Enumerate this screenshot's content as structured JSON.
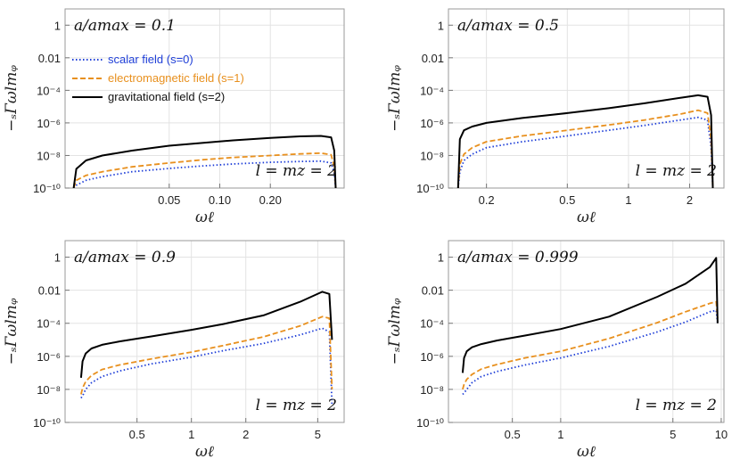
{
  "figure": {
    "ylabel": "−ₛΓωlmᵩ",
    "xlabel": "ωℓ",
    "legend": [
      {
        "label": "scalar field (s=0)",
        "color": "#1f3fd8",
        "dash": "dotted"
      },
      {
        "label": "electromagnetic field (s=1)",
        "color": "#e8901e",
        "dash": "dashed"
      },
      {
        "label": "gravitational field (s=2)",
        "color": "#000000",
        "dash": "solid"
      }
    ]
  },
  "chart_data": [
    {
      "type": "line",
      "title": "a/amax = 0.1",
      "annotation": "l = mz = 2",
      "xscale": "log",
      "yscale": "log",
      "xlim": [
        0.012,
        0.55
      ],
      "ylim": [
        1e-10,
        10
      ],
      "xticks": [
        {
          "v": 0.05,
          "label": "0.05"
        },
        {
          "v": 0.1,
          "label": "0.10"
        },
        {
          "v": 0.2,
          "label": "0.20"
        }
      ],
      "yticks": [
        {
          "v": 1,
          "label": "1"
        },
        {
          "v": 0.01,
          "label": "0.01"
        },
        {
          "v": 0.0001,
          "label": "10⁻⁴"
        },
        {
          "v": 1e-06,
          "label": "10⁻⁶"
        },
        {
          "v": 1e-08,
          "label": "10⁻⁸"
        },
        {
          "v": 1e-10,
          "label": "10⁻¹⁰"
        }
      ],
      "grid": true,
      "legend": true,
      "series": [
        {
          "name": "scalar field (s=0)",
          "x": [
            0.0135,
            0.014,
            0.016,
            0.02,
            0.03,
            0.05,
            0.08,
            0.12,
            0.2,
            0.3,
            0.4,
            0.46,
            0.48,
            0.49
          ],
          "y": [
            1e-10,
            1.5e-10,
            3e-10,
            5e-10,
            1e-09,
            1.6e-09,
            2.3e-09,
            3e-09,
            3.8e-09,
            4.3e-09,
            4.5e-09,
            3.5e-09,
            8e-10,
            1e-10
          ]
        },
        {
          "name": "electromagnetic field (s=1)",
          "x": [
            0.0135,
            0.014,
            0.016,
            0.02,
            0.03,
            0.05,
            0.08,
            0.12,
            0.2,
            0.3,
            0.4,
            0.46,
            0.48,
            0.49
          ],
          "y": [
            1e-10,
            3e-10,
            6e-10,
            1e-09,
            2e-09,
            3.5e-09,
            5.5e-09,
            7.5e-09,
            1e-08,
            1.25e-08,
            1.4e-08,
            1.1e-08,
            2e-09,
            1e-10
          ]
        },
        {
          "name": "gravitational field (s=2)",
          "x": [
            0.0135,
            0.014,
            0.016,
            0.02,
            0.03,
            0.05,
            0.08,
            0.12,
            0.2,
            0.3,
            0.4,
            0.46,
            0.48,
            0.49
          ],
          "y": [
            1e-10,
            1.5e-09,
            5e-09,
            1e-08,
            2e-08,
            4e-08,
            6e-08,
            8.5e-08,
            1.2e-07,
            1.5e-07,
            1.6e-07,
            1.3e-07,
            2e-08,
            1e-10
          ]
        }
      ]
    },
    {
      "type": "line",
      "title": "a/amax = 0.5",
      "annotation": "l = mz = 2",
      "xscale": "log",
      "yscale": "log",
      "xlim": [
        0.13,
        2.95
      ],
      "ylim": [
        1e-10,
        10
      ],
      "xticks": [
        {
          "v": 0.2,
          "label": "0.2"
        },
        {
          "v": 0.5,
          "label": "0.5"
        },
        {
          "v": 1,
          "label": "1"
        },
        {
          "v": 2,
          "label": "2"
        }
      ],
      "yticks": [
        {
          "v": 1,
          "label": "1"
        },
        {
          "v": 0.01,
          "label": "0.01"
        },
        {
          "v": 0.0001,
          "label": "10⁻⁴"
        },
        {
          "v": 1e-06,
          "label": "10⁻⁶"
        },
        {
          "v": 1e-08,
          "label": "10⁻⁸"
        },
        {
          "v": 1e-10,
          "label": "10⁻¹⁰"
        }
      ],
      "grid": true,
      "legend": false,
      "series": [
        {
          "name": "scalar field (s=0)",
          "x": [
            0.145,
            0.148,
            0.155,
            0.17,
            0.2,
            0.3,
            0.5,
            0.8,
            1.2,
            1.8,
            2.2,
            2.45,
            2.55,
            2.6
          ],
          "y": [
            1e-10,
            1e-09,
            5e-09,
            1.2e-08,
            3e-08,
            7e-08,
            1.6e-07,
            3.5e-07,
            7e-07,
            1.5e-06,
            2.2e-06,
            1.5e-06,
            3e-08,
            1e-10
          ]
        },
        {
          "name": "electromagnetic field (s=1)",
          "x": [
            0.145,
            0.148,
            0.155,
            0.17,
            0.2,
            0.3,
            0.5,
            0.8,
            1.2,
            1.8,
            2.2,
            2.45,
            2.55,
            2.6
          ],
          "y": [
            1e-10,
            3e-09,
            1.2e-08,
            3e-08,
            7e-08,
            1.6e-07,
            3.5e-07,
            7.5e-07,
            1.5e-06,
            3.5e-06,
            6e-06,
            4e-06,
            1e-07,
            1e-10
          ]
        },
        {
          "name": "gravitational field (s=2)",
          "x": [
            0.145,
            0.148,
            0.155,
            0.17,
            0.2,
            0.3,
            0.5,
            0.8,
            1.2,
            1.8,
            2.2,
            2.45,
            2.55,
            2.6
          ],
          "y": [
            1e-10,
            1e-07,
            3.5e-07,
            6e-07,
            1e-06,
            2e-06,
            4e-06,
            8e-06,
            1.6e-05,
            3.5e-05,
            5e-05,
            4e-05,
            3e-06,
            1e-10
          ]
        }
      ]
    },
    {
      "type": "line",
      "title": "a/amax = 0.9",
      "annotation": "l = mz = 2",
      "xscale": "log",
      "yscale": "log",
      "xlim": [
        0.2,
        7.0
      ],
      "ylim": [
        1e-10,
        10
      ],
      "xticks": [
        {
          "v": 0.5,
          "label": "0.5"
        },
        {
          "v": 1,
          "label": "1"
        },
        {
          "v": 2,
          "label": "2"
        },
        {
          "v": 5,
          "label": "5"
        }
      ],
      "yticks": [
        {
          "v": 1,
          "label": "1"
        },
        {
          "v": 0.01,
          "label": "0.01"
        },
        {
          "v": 0.0001,
          "label": "10⁻⁴"
        },
        {
          "v": 1e-06,
          "label": "10⁻⁶"
        },
        {
          "v": 1e-08,
          "label": "10⁻⁸"
        },
        {
          "v": 1e-10,
          "label": "10⁻¹⁰"
        }
      ],
      "grid": true,
      "legend": false,
      "series": [
        {
          "name": "scalar field (s=0)",
          "x": [
            0.245,
            0.25,
            0.26,
            0.28,
            0.32,
            0.4,
            0.6,
            1,
            1.5,
            2.5,
            4,
            5.3,
            5.8,
            6.0
          ],
          "y": [
            3e-09,
            4e-09,
            1e-08,
            2.5e-08,
            6e-08,
            1.3e-07,
            3.5e-07,
            9e-07,
            2.2e-06,
            6e-06,
            2e-05,
            5e-05,
            3e-05,
            1e-09
          ]
        },
        {
          "name": "electromagnetic field (s=1)",
          "x": [
            0.245,
            0.25,
            0.26,
            0.28,
            0.32,
            0.4,
            0.6,
            1,
            1.5,
            2.5,
            4,
            5.3,
            5.8,
            6.0
          ],
          "y": [
            5e-09,
            1.2e-08,
            3e-08,
            7e-08,
            1.6e-07,
            3e-07,
            7e-07,
            1.8e-06,
            4.5e-06,
            1.5e-05,
            7e-05,
            0.00025,
            0.0002,
            1e-08
          ]
        },
        {
          "name": "gravitational field (s=2)",
          "x": [
            0.245,
            0.25,
            0.26,
            0.28,
            0.32,
            0.4,
            0.6,
            1,
            1.5,
            2.5,
            4,
            5.3,
            5.8,
            6.0
          ],
          "y": [
            5e-08,
            5e-07,
            1.5e-06,
            3e-06,
            5e-06,
            8e-06,
            1.6e-05,
            4e-05,
            9e-05,
            0.0003,
            0.002,
            0.008,
            0.006,
            1e-05
          ]
        }
      ]
    },
    {
      "type": "line",
      "title": "a/amax = 0.999",
      "annotation": "l = mz = 2",
      "xscale": "log",
      "yscale": "log",
      "xlim": [
        0.2,
        10.4
      ],
      "ylim": [
        1e-10,
        10
      ],
      "xticks": [
        {
          "v": 0.5,
          "label": "0.5"
        },
        {
          "v": 1,
          "label": "1"
        },
        {
          "v": 5,
          "label": "5"
        },
        {
          "v": 10,
          "label": "10"
        }
      ],
      "yticks": [
        {
          "v": 1,
          "label": "1"
        },
        {
          "v": 0.01,
          "label": "0.01"
        },
        {
          "v": 0.0001,
          "label": "10⁻⁴"
        },
        {
          "v": 1e-06,
          "label": "10⁻⁶"
        },
        {
          "v": 1e-08,
          "label": "10⁻⁸"
        },
        {
          "v": 1e-10,
          "label": "10⁻¹⁰"
        }
      ],
      "grid": true,
      "legend": false,
      "series": [
        {
          "name": "scalar field (s=0)",
          "x": [
            0.245,
            0.25,
            0.26,
            0.28,
            0.32,
            0.4,
            0.6,
            1,
            2,
            4,
            6,
            8.5,
            9.3,
            9.5
          ],
          "y": [
            5e-09,
            6e-09,
            1e-08,
            2.5e-08,
            6e-08,
            1.2e-07,
            3e-07,
            8e-07,
            4e-06,
            3e-05,
            0.00012,
            0.0005,
            0.0006,
            0.0001
          ]
        },
        {
          "name": "electromagnetic field (s=1)",
          "x": [
            0.245,
            0.25,
            0.26,
            0.28,
            0.32,
            0.4,
            0.6,
            1,
            2,
            4,
            6,
            8.5,
            9.3,
            9.5
          ],
          "y": [
            1e-08,
            2e-08,
            4e-08,
            8e-08,
            1.7e-07,
            3.2e-07,
            8e-07,
            2e-06,
            1.2e-05,
            0.00011,
            0.0005,
            0.0016,
            0.002,
            0.0002
          ]
        },
        {
          "name": "gravitational field (s=2)",
          "x": [
            0.245,
            0.25,
            0.26,
            0.28,
            0.32,
            0.4,
            0.6,
            1,
            2,
            4,
            6,
            8.5,
            9.3,
            9.5
          ],
          "y": [
            1e-07,
            8e-07,
            2e-06,
            3.5e-06,
            5.5e-06,
            9e-06,
            1.8e-05,
            4.5e-05,
            0.00025,
            0.004,
            0.025,
            0.25,
            0.9,
            0.0001
          ]
        }
      ]
    }
  ]
}
